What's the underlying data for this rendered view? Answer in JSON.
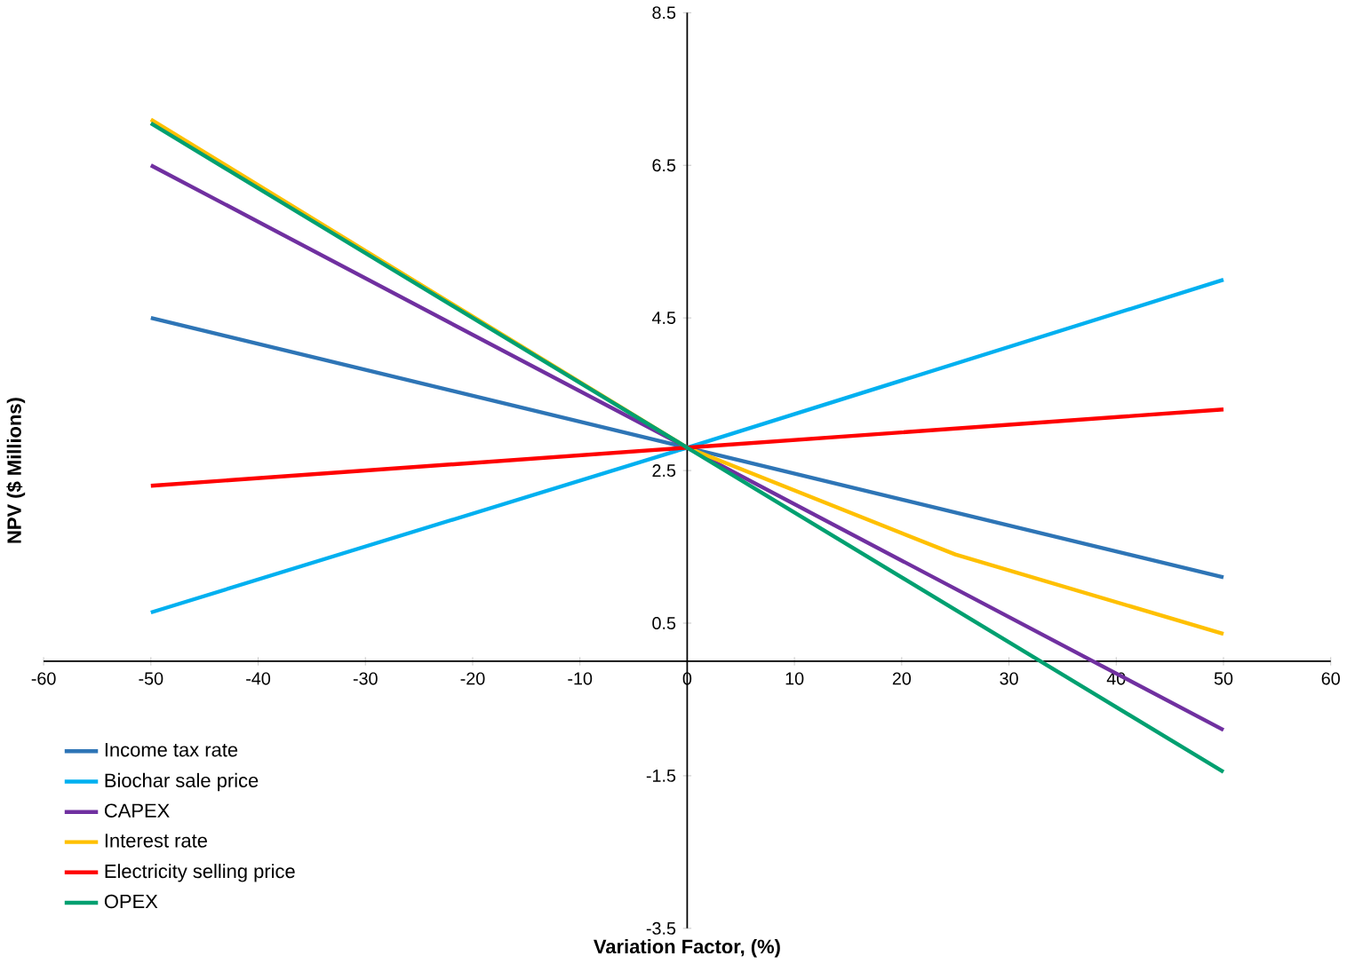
{
  "chart_data": {
    "type": "line",
    "xlabel": "Variation Factor, (%)",
    "ylabel": "NPV ($ Millions)",
    "x": [
      -50,
      0,
      50
    ],
    "series": [
      {
        "name": "Income tax rate",
        "color": "#2e75b6",
        "values": [
          4.5,
          2.8,
          1.1
        ]
      },
      {
        "name": "Biochar sale price",
        "color": "#00b0f0",
        "values": [
          0.64,
          2.8,
          5.0
        ]
      },
      {
        "name": "CAPEX",
        "color": "#7030a0",
        "values": [
          6.5,
          2.8,
          -0.9
        ]
      },
      {
        "name": "Interest rate",
        "color": "#ffc000",
        "x": [
          -50,
          0,
          25,
          50
        ],
        "values": [
          7.1,
          2.8,
          1.4,
          0.36
        ]
      },
      {
        "name": "Electricity selling price",
        "color": "#ff0000",
        "values": [
          2.3,
          2.8,
          3.3
        ]
      },
      {
        "name": "OPEX",
        "color": "#00a070",
        "values": [
          7.05,
          2.8,
          -1.45
        ]
      }
    ],
    "xlim": [
      -60,
      60
    ],
    "ylim": [
      -3.5,
      8.5
    ],
    "xticks": [
      -60,
      -50,
      -40,
      -30,
      -20,
      -10,
      0,
      10,
      20,
      30,
      40,
      50,
      60
    ],
    "yticks": [
      -3.5,
      -1.5,
      0.5,
      2.5,
      4.5,
      6.5,
      8.5
    ],
    "legend": "bottom left"
  }
}
